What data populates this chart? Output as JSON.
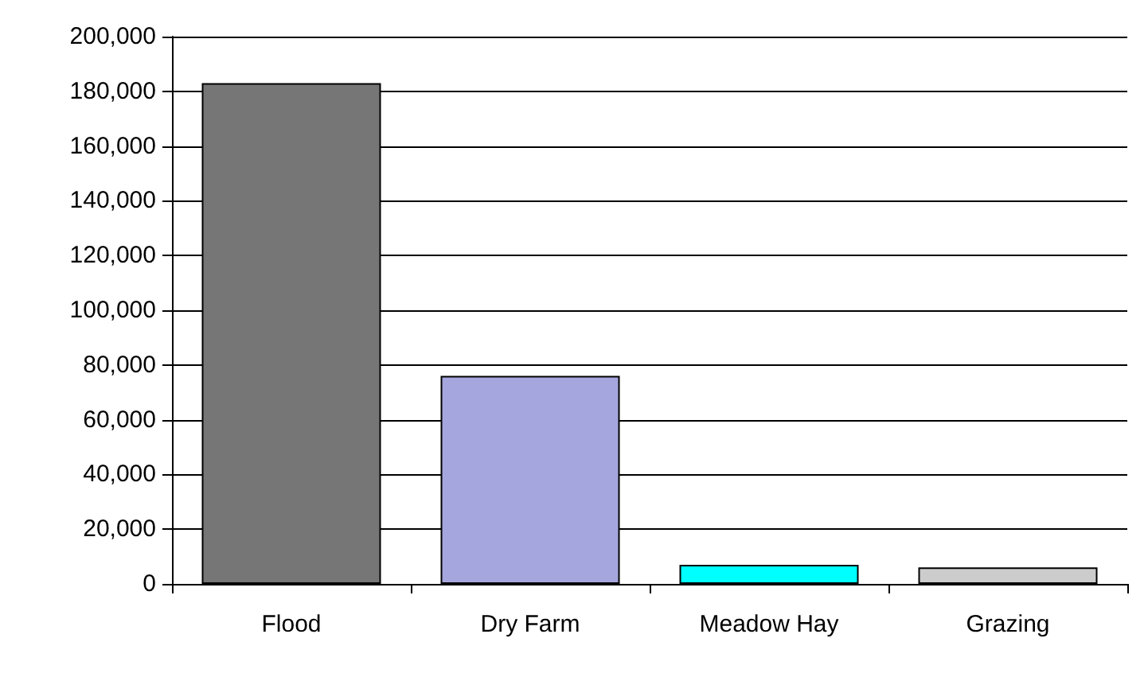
{
  "chart_data": {
    "type": "bar",
    "categories": [
      "Flood",
      "Dry Farm",
      "Meadow Hay",
      "Grazing"
    ],
    "values": [
      183000,
      76000,
      7000,
      6000
    ],
    "colors": [
      "#767676",
      "#a6a6de",
      "#00ffff",
      "#cccccc"
    ],
    "ylim": [
      0,
      200000
    ],
    "yticks": [
      0,
      {
        "value": 20000,
        "label": "20,000"
      },
      {
        "value": 40000,
        "label": "40,000"
      },
      {
        "value": 60000,
        "label": "60,000"
      },
      {
        "value": 80000,
        "label": "80,000"
      },
      {
        "value": 100000,
        "label": "100,000"
      },
      {
        "value": 120000,
        "label": "120,000"
      },
      {
        "value": 140000,
        "label": "140,000"
      },
      {
        "value": 160000,
        "label": "160,000"
      },
      {
        "value": 180000,
        "label": "180,000"
      },
      {
        "value": 200000,
        "label": "200,000"
      }
    ],
    "grid": "y"
  }
}
